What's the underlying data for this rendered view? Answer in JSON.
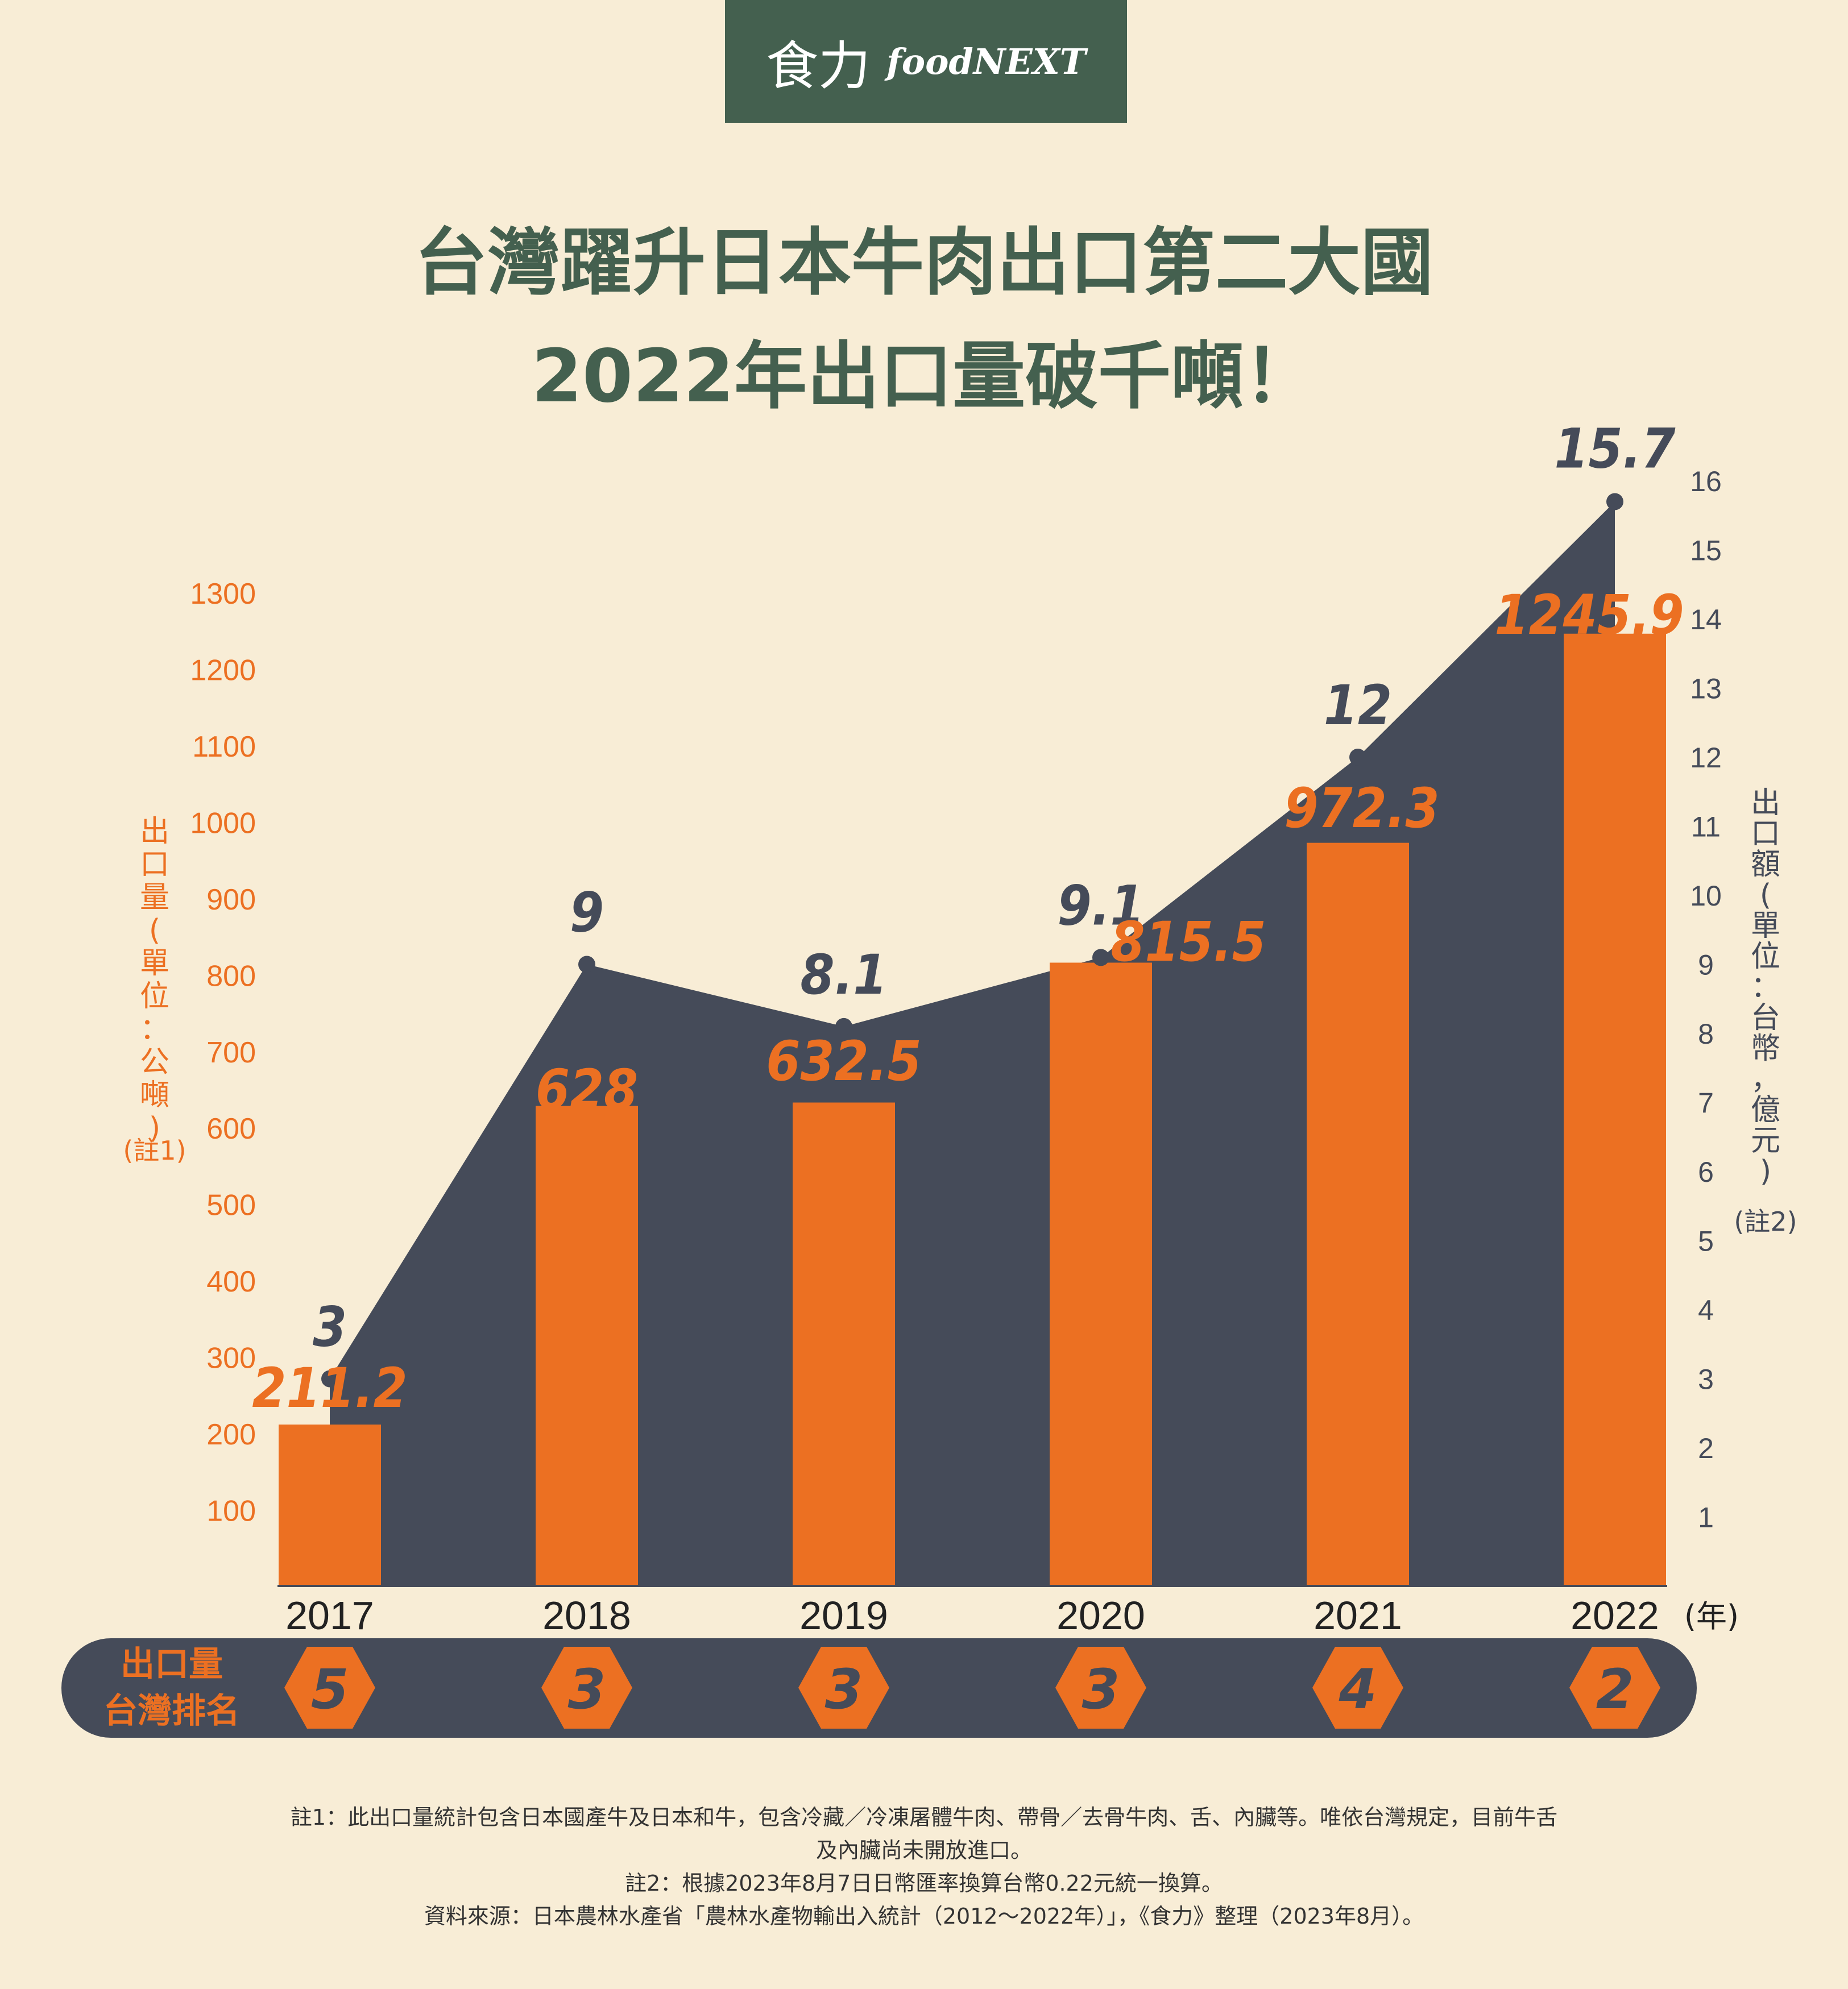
{
  "brand": {
    "zh": "食力",
    "en": "foodNEXT"
  },
  "title": {
    "line1": "台灣躍升日本牛肉出口第二大國",
    "line2": "2022年出口量破千噸！"
  },
  "colors": {
    "background": "#F8EDD6",
    "area": "#454B59",
    "bars": "#EC7022",
    "title": "#44604F",
    "brand_bg": "#44604F"
  },
  "chart_data": {
    "type": "bar",
    "categories": [
      "2017",
      "2018",
      "2019",
      "2020",
      "2021",
      "2022"
    ],
    "x_unit": "(年)",
    "series": [
      {
        "name": "出口量",
        "type": "bar",
        "axis": "left",
        "values": [
          211.2,
          628,
          632.5,
          815.5,
          972.3,
          1245.9
        ],
        "labels": [
          "211.2",
          "628",
          "632.5",
          "815.5",
          "972.3",
          "1245.9"
        ]
      },
      {
        "name": "出口額",
        "type": "area",
        "axis": "right",
        "values": [
          3,
          9,
          8.1,
          9.1,
          12,
          15.7
        ],
        "labels": [
          "3",
          "9",
          "8.1",
          "9.1",
          "12",
          "15.7"
        ]
      }
    ],
    "left_axis": {
      "label": "出口量(單位：公噸)",
      "note": "(註1)",
      "ticks": [
        100,
        200,
        300,
        400,
        500,
        600,
        700,
        800,
        900,
        1000,
        1100,
        1200,
        1300
      ],
      "range": [
        0,
        1350
      ]
    },
    "right_axis": {
      "label": "出口額(單位：台幣，億元)",
      "note": "(註2)",
      "ticks": [
        1,
        2,
        3,
        4,
        5,
        6,
        7,
        8,
        9,
        10,
        11,
        12,
        13,
        14,
        15,
        16
      ],
      "range": [
        0,
        16.55
      ]
    },
    "rank": {
      "label_line1": "出口量",
      "label_line2": "台灣排名",
      "values": [
        "5",
        "3",
        "3",
        "3",
        "4",
        "2"
      ]
    }
  },
  "notes": [
    "註1：此出口量統計包含日本國產牛及日本和牛，包含冷藏／冷凍屠體牛肉、帶骨／去骨牛肉、舌、內臟等。唯依台灣規定，目前牛舌",
    "及內臟尚未開放進口。",
    "註2：根據2023年8月7日日幣匯率換算台幣0.22元統一換算。",
    "資料來源：日本農林水產省「農林水產物輸出入統計（2012〜2022年）」，《食力》整理（2023年8月）。"
  ]
}
